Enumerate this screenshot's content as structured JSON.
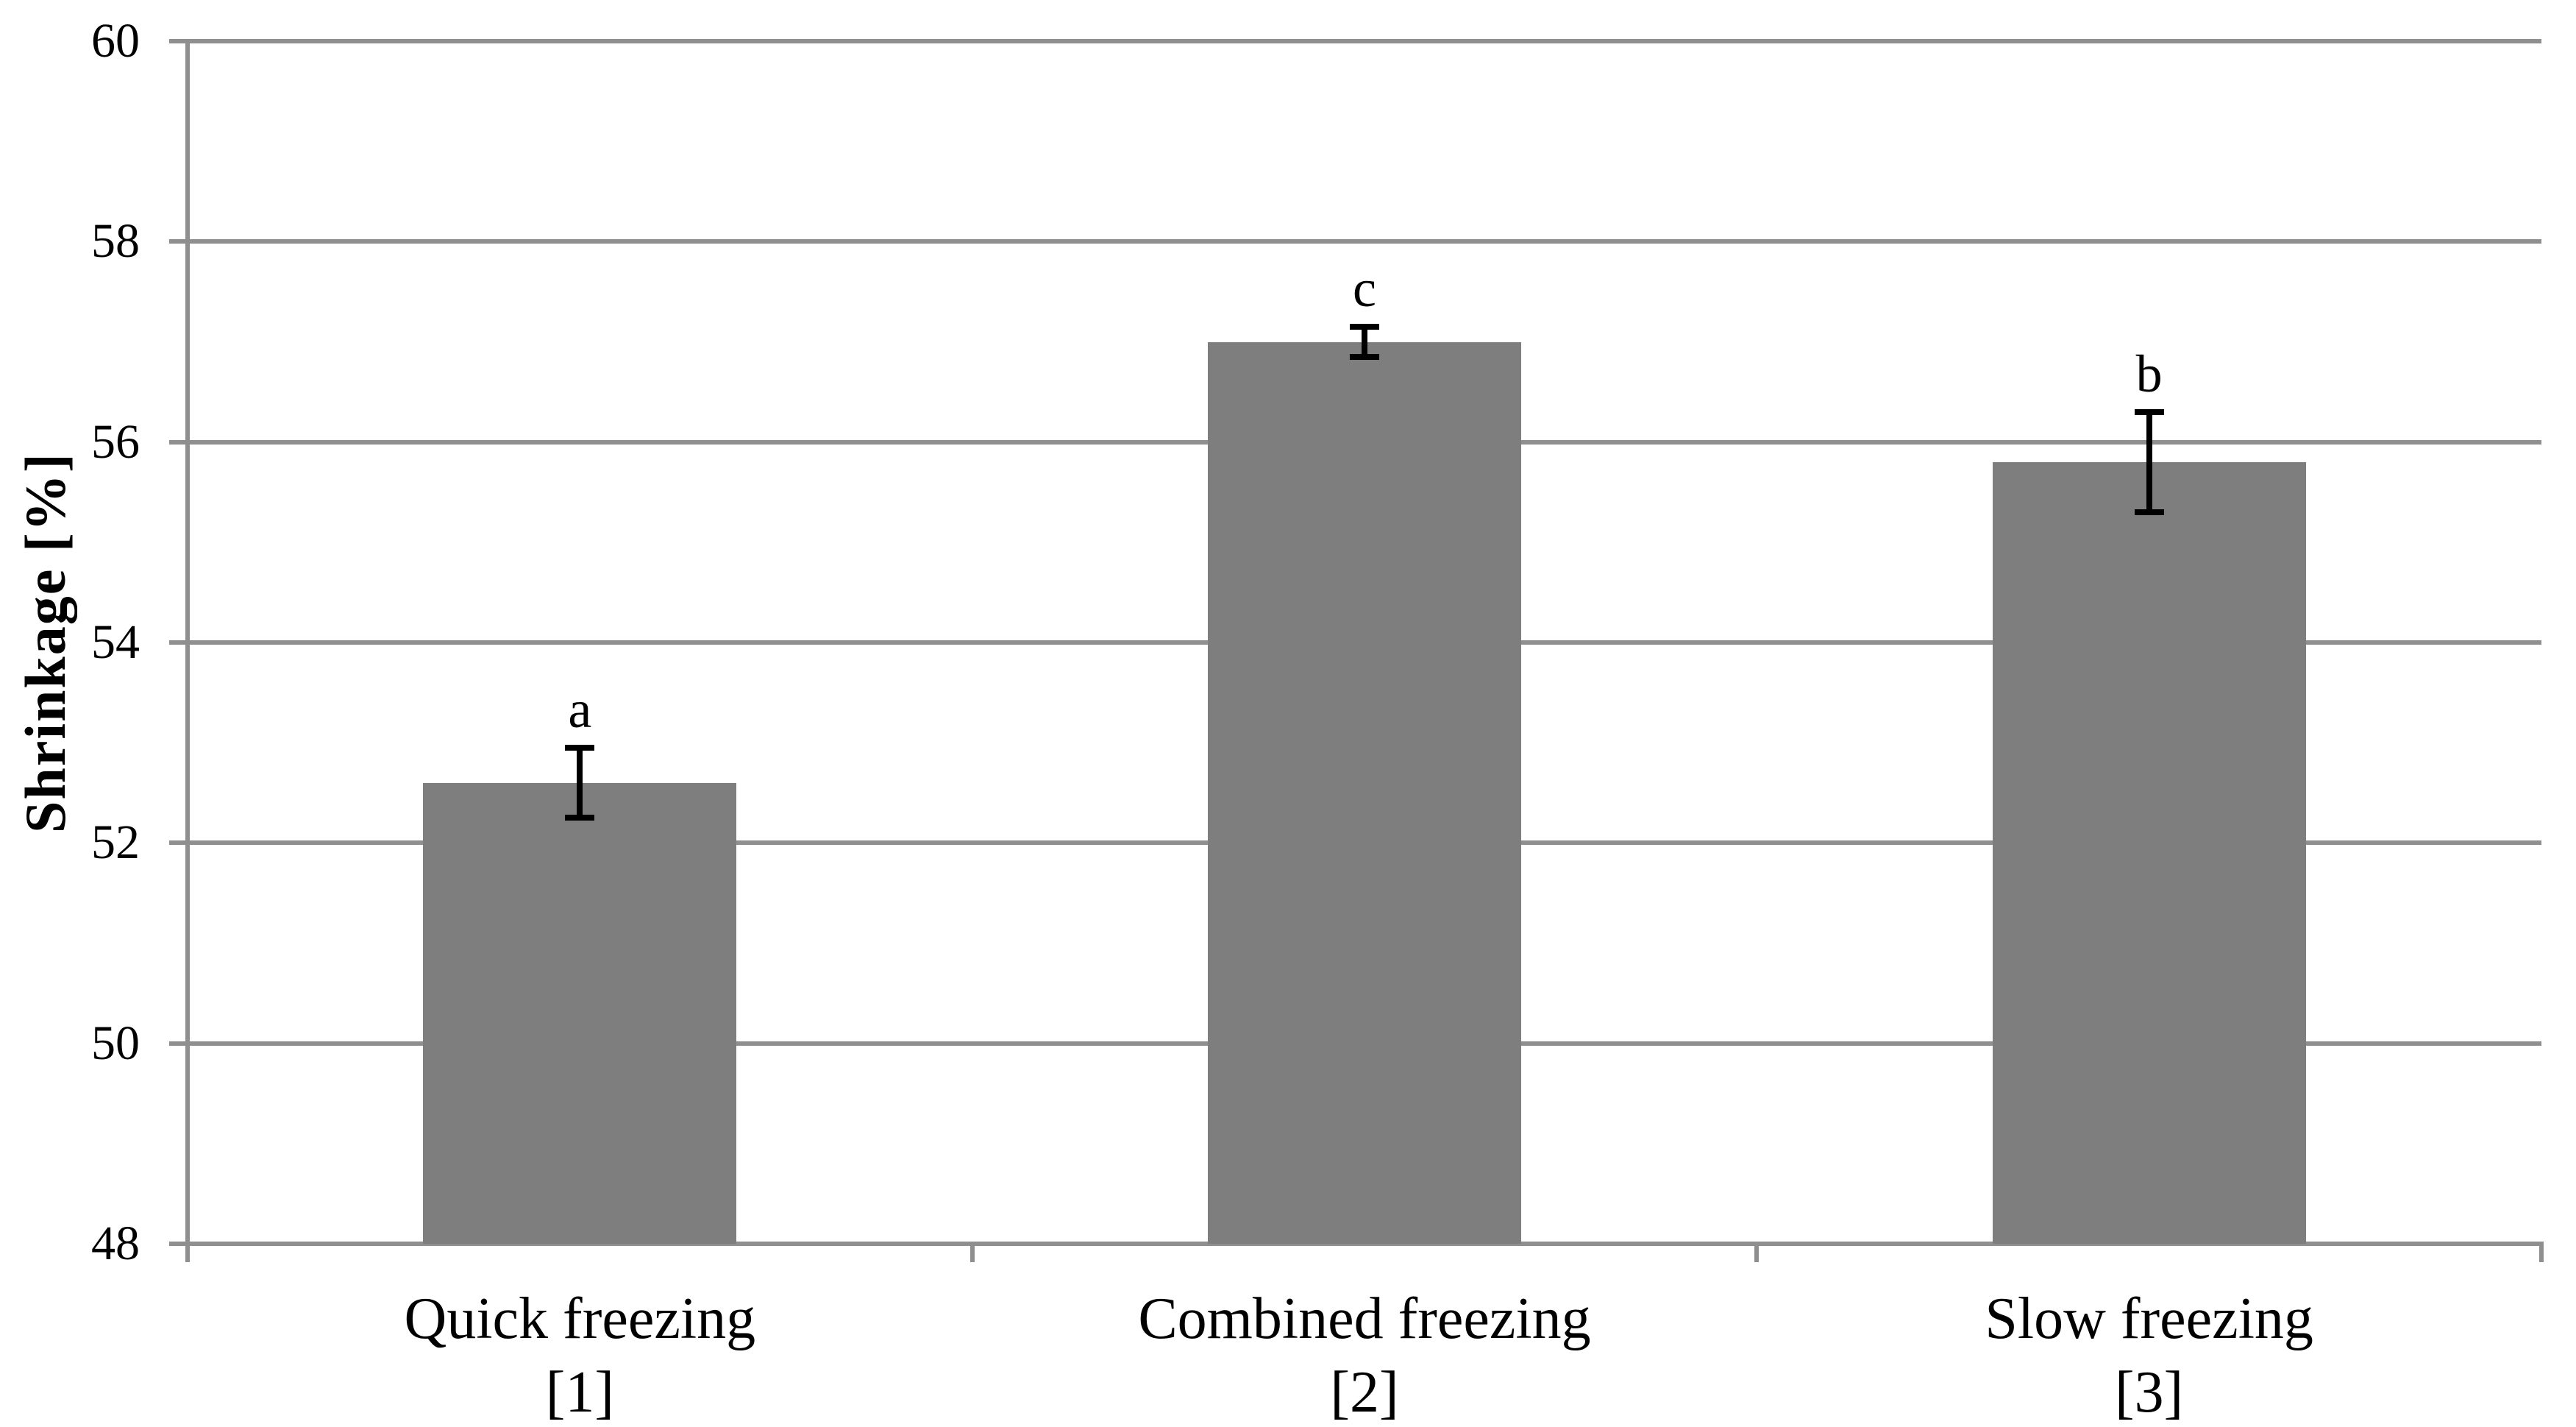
{
  "chart_data": {
    "type": "bar",
    "title": "",
    "ylabel": "Shrinkage [%]",
    "xlabel": "",
    "ylim": [
      48,
      60
    ],
    "yticks": [
      48,
      50,
      52,
      54,
      56,
      58,
      60
    ],
    "grid": "horizontal-major-only",
    "legend": "none",
    "categories": [
      "Quick freezing",
      "Combined freezing",
      "Slow freezing"
    ],
    "category_refs": [
      "[1]",
      "[2]",
      "[3]"
    ],
    "values": [
      52.6,
      57.0,
      55.8
    ],
    "error_bars": [
      0.35,
      0.15,
      0.5
    ],
    "significance_letters": [
      "a",
      "c",
      "b"
    ],
    "colors": {
      "bar_fill": "#7e7e7e",
      "gridline": "#8f8f8f",
      "axis_line": "#8f8f8f",
      "error_bar": "#000000",
      "text": "#000000",
      "background": "#ffffff"
    }
  }
}
